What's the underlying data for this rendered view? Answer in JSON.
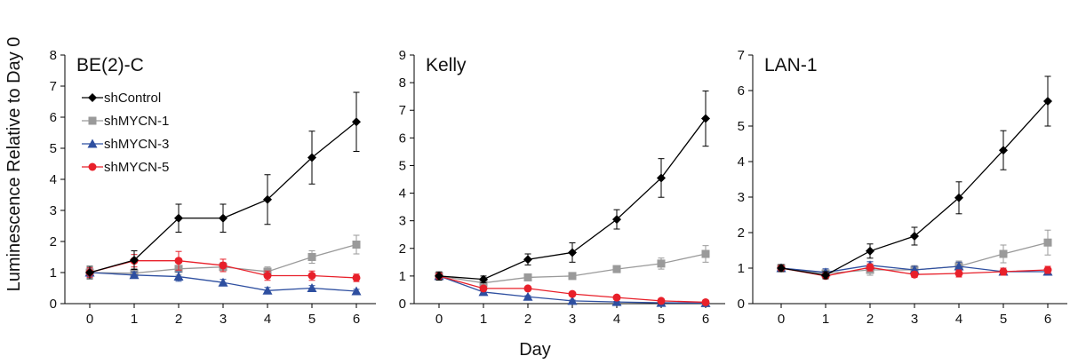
{
  "figure": {
    "ylabel": "Luminescence Relative to Day 0",
    "xlabel": "Day"
  },
  "legend": {
    "items": [
      {
        "name": "shControl",
        "color": "#000000",
        "marker": "diamond"
      },
      {
        "name": "shMYCN-1",
        "color": "#9a9a9a",
        "marker": "square"
      },
      {
        "name": "shMYCN-3",
        "color": "#2e4fa0",
        "marker": "triangle"
      },
      {
        "name": "shMYCN-5",
        "color": "#e8202a",
        "marker": "circle"
      }
    ]
  },
  "chart_data": [
    {
      "type": "line",
      "title": "BE(2)-C",
      "x": [
        0,
        1,
        2,
        3,
        4,
        5,
        6
      ],
      "ylim": [
        0,
        8
      ],
      "yticks": [
        0,
        1,
        2,
        3,
        4,
        5,
        6,
        7,
        8
      ],
      "series": [
        {
          "name": "shControl",
          "values": [
            1.0,
            1.4,
            2.75,
            2.75,
            3.35,
            4.7,
            5.85
          ],
          "errors": [
            0.2,
            0.3,
            0.45,
            0.45,
            0.8,
            0.85,
            0.95
          ]
        },
        {
          "name": "shMYCN-1",
          "values": [
            1.0,
            0.98,
            1.12,
            1.18,
            1.03,
            1.5,
            1.9
          ],
          "errors": [
            0.15,
            0.15,
            0.2,
            0.15,
            0.15,
            0.2,
            0.3
          ]
        },
        {
          "name": "shMYCN-3",
          "values": [
            1.0,
            0.92,
            0.87,
            0.68,
            0.42,
            0.5,
            0.4
          ],
          "errors": [
            0.15,
            0.1,
            0.15,
            0.1,
            0.1,
            0.08,
            0.06
          ]
        },
        {
          "name": "shMYCN-5",
          "values": [
            1.0,
            1.38,
            1.38,
            1.23,
            0.9,
            0.9,
            0.83
          ],
          "errors": [
            0.15,
            0.2,
            0.3,
            0.2,
            0.15,
            0.15,
            0.12
          ]
        }
      ]
    },
    {
      "type": "line",
      "title": "Kelly",
      "x": [
        0,
        1,
        2,
        3,
        4,
        5,
        6
      ],
      "ylim": [
        0,
        9
      ],
      "yticks": [
        0,
        1,
        2,
        3,
        4,
        5,
        6,
        7,
        8,
        9
      ],
      "series": [
        {
          "name": "shControl",
          "values": [
            1.0,
            0.88,
            1.6,
            1.85,
            3.05,
            4.55,
            6.7
          ],
          "errors": [
            0.15,
            0.12,
            0.2,
            0.35,
            0.35,
            0.7,
            1.0
          ]
        },
        {
          "name": "shMYCN-1",
          "values": [
            1.0,
            0.75,
            0.95,
            1.0,
            1.25,
            1.45,
            1.8
          ],
          "errors": [
            0.1,
            0.08,
            0.1,
            0.1,
            0.12,
            0.2,
            0.3
          ]
        },
        {
          "name": "shMYCN-3",
          "values": [
            1.0,
            0.42,
            0.25,
            0.1,
            0.06,
            0.03,
            0.02
          ],
          "errors": [
            0.1,
            0.05,
            0.04,
            0.03,
            0.02,
            0.02,
            0.01
          ]
        },
        {
          "name": "shMYCN-5",
          "values": [
            1.0,
            0.55,
            0.55,
            0.35,
            0.22,
            0.1,
            0.05
          ],
          "errors": [
            0.1,
            0.06,
            0.05,
            0.04,
            0.03,
            0.02,
            0.02
          ]
        }
      ]
    },
    {
      "type": "line",
      "title": "LAN-1",
      "x": [
        0,
        1,
        2,
        3,
        4,
        5,
        6
      ],
      "ylim": [
        0,
        7
      ],
      "yticks": [
        0,
        1,
        2,
        3,
        4,
        5,
        6,
        7
      ],
      "series": [
        {
          "name": "shControl",
          "values": [
            1.0,
            0.8,
            1.48,
            1.9,
            2.98,
            4.32,
            5.7
          ],
          "errors": [
            0.1,
            0.1,
            0.2,
            0.25,
            0.45,
            0.55,
            0.7
          ]
        },
        {
          "name": "shMYCN-1",
          "values": [
            1.0,
            0.85,
            0.95,
            0.95,
            1.05,
            1.4,
            1.72
          ],
          "errors": [
            0.1,
            0.1,
            0.15,
            0.12,
            0.15,
            0.25,
            0.35
          ]
        },
        {
          "name": "shMYCN-3",
          "values": [
            1.0,
            0.88,
            1.08,
            0.95,
            1.05,
            0.9,
            0.9
          ],
          "errors": [
            0.1,
            0.1,
            0.1,
            0.1,
            0.12,
            0.1,
            0.1
          ]
        },
        {
          "name": "shMYCN-5",
          "values": [
            1.0,
            0.78,
            1.02,
            0.82,
            0.85,
            0.9,
            0.95
          ],
          "errors": [
            0.1,
            0.08,
            0.1,
            0.08,
            0.1,
            0.1,
            0.1
          ]
        }
      ]
    }
  ]
}
